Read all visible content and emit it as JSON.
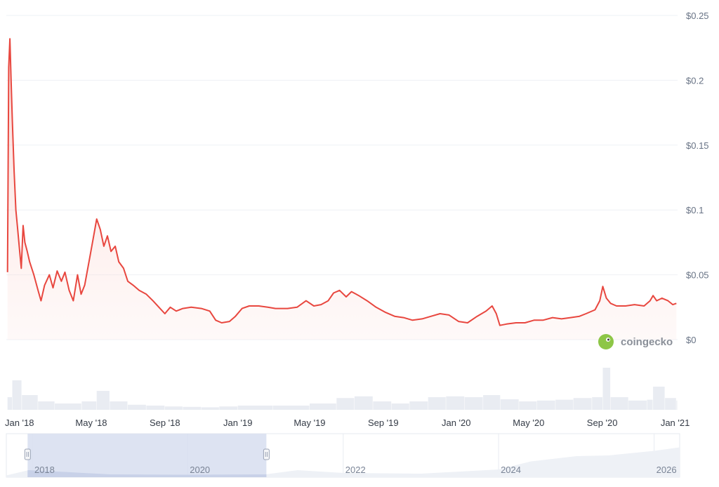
{
  "chart_data": {
    "type": "line",
    "title": "",
    "xlabel": "",
    "ylabel": "",
    "x_range": [
      "2017-12-10",
      "2021-01-05"
    ],
    "ylim": [
      0,
      0.25
    ],
    "y_ticks": [
      {
        "value": 0,
        "label": "$0"
      },
      {
        "value": 0.05,
        "label": "$0.05"
      },
      {
        "value": 0.1,
        "label": "$0.1"
      },
      {
        "value": 0.15,
        "label": "$0.15"
      },
      {
        "value": 0.2,
        "label": "$0.2"
      },
      {
        "value": 0.25,
        "label": "$0.25"
      }
    ],
    "x_ticks": [
      {
        "date": "2018-01-01",
        "label": "Jan '18"
      },
      {
        "date": "2018-05-01",
        "label": "May '18"
      },
      {
        "date": "2018-09-01",
        "label": "Sep '18"
      },
      {
        "date": "2019-01-01",
        "label": "Jan '19"
      },
      {
        "date": "2019-05-01",
        "label": "May '19"
      },
      {
        "date": "2019-09-01",
        "label": "Sep '19"
      },
      {
        "date": "2020-01-01",
        "label": "Jan '20"
      },
      {
        "date": "2020-05-01",
        "label": "May '20"
      },
      {
        "date": "2020-09-01",
        "label": "Sep '20"
      },
      {
        "date": "2021-01-01",
        "label": "Jan '21"
      }
    ],
    "grid": true,
    "line_color": "#e8473f",
    "series": [
      {
        "name": "",
        "points": [
          [
            "2017-12-12",
            0.052
          ],
          [
            "2017-12-14",
            0.21
          ],
          [
            "2017-12-16",
            0.232
          ],
          [
            "2017-12-18",
            0.2
          ],
          [
            "2017-12-20",
            0.17
          ],
          [
            "2017-12-23",
            0.13
          ],
          [
            "2017-12-26",
            0.1
          ],
          [
            "2017-12-29",
            0.085
          ],
          [
            "2018-01-01",
            0.07
          ],
          [
            "2018-01-04",
            0.055
          ],
          [
            "2018-01-07",
            0.088
          ],
          [
            "2018-01-10",
            0.075
          ],
          [
            "2018-01-14",
            0.068
          ],
          [
            "2018-01-18",
            0.06
          ],
          [
            "2018-01-25",
            0.05
          ],
          [
            "2018-02-01",
            0.038
          ],
          [
            "2018-02-06",
            0.03
          ],
          [
            "2018-02-12",
            0.042
          ],
          [
            "2018-02-20",
            0.05
          ],
          [
            "2018-02-26",
            0.04
          ],
          [
            "2018-03-05",
            0.053
          ],
          [
            "2018-03-12",
            0.045
          ],
          [
            "2018-03-18",
            0.052
          ],
          [
            "2018-03-25",
            0.038
          ],
          [
            "2018-04-01",
            0.03
          ],
          [
            "2018-04-08",
            0.05
          ],
          [
            "2018-04-14",
            0.035
          ],
          [
            "2018-04-20",
            0.042
          ],
          [
            "2018-04-28",
            0.062
          ],
          [
            "2018-05-05",
            0.08
          ],
          [
            "2018-05-10",
            0.093
          ],
          [
            "2018-05-16",
            0.085
          ],
          [
            "2018-05-22",
            0.072
          ],
          [
            "2018-05-28",
            0.08
          ],
          [
            "2018-06-03",
            0.068
          ],
          [
            "2018-06-10",
            0.072
          ],
          [
            "2018-06-16",
            0.06
          ],
          [
            "2018-06-24",
            0.055
          ],
          [
            "2018-07-01",
            0.045
          ],
          [
            "2018-07-10",
            0.042
          ],
          [
            "2018-07-20",
            0.038
          ],
          [
            "2018-08-01",
            0.035
          ],
          [
            "2018-08-12",
            0.03
          ],
          [
            "2018-08-22",
            0.025
          ],
          [
            "2018-09-01",
            0.02
          ],
          [
            "2018-09-10",
            0.025
          ],
          [
            "2018-09-20",
            0.022
          ],
          [
            "2018-10-01",
            0.024
          ],
          [
            "2018-10-15",
            0.025
          ],
          [
            "2018-11-01",
            0.024
          ],
          [
            "2018-11-15",
            0.022
          ],
          [
            "2018-11-25",
            0.015
          ],
          [
            "2018-12-05",
            0.013
          ],
          [
            "2018-12-18",
            0.014
          ],
          [
            "2018-12-28",
            0.018
          ],
          [
            "2019-01-08",
            0.024
          ],
          [
            "2019-01-20",
            0.026
          ],
          [
            "2019-02-05",
            0.026
          ],
          [
            "2019-02-20",
            0.025
          ],
          [
            "2019-03-05",
            0.024
          ],
          [
            "2019-03-25",
            0.024
          ],
          [
            "2019-04-10",
            0.025
          ],
          [
            "2019-04-25",
            0.03
          ],
          [
            "2019-05-08",
            0.026
          ],
          [
            "2019-05-20",
            0.027
          ],
          [
            "2019-06-01",
            0.03
          ],
          [
            "2019-06-10",
            0.036
          ],
          [
            "2019-06-20",
            0.038
          ],
          [
            "2019-07-01",
            0.033
          ],
          [
            "2019-07-10",
            0.037
          ],
          [
            "2019-07-22",
            0.034
          ],
          [
            "2019-08-05",
            0.03
          ],
          [
            "2019-08-20",
            0.025
          ],
          [
            "2019-09-05",
            0.021
          ],
          [
            "2019-09-20",
            0.018
          ],
          [
            "2019-10-05",
            0.017
          ],
          [
            "2019-10-20",
            0.015
          ],
          [
            "2019-11-05",
            0.016
          ],
          [
            "2019-11-20",
            0.018
          ],
          [
            "2019-12-05",
            0.02
          ],
          [
            "2019-12-20",
            0.019
          ],
          [
            "2020-01-05",
            0.014
          ],
          [
            "2020-01-20",
            0.013
          ],
          [
            "2020-02-05",
            0.018
          ],
          [
            "2020-02-20",
            0.022
          ],
          [
            "2020-03-01",
            0.026
          ],
          [
            "2020-03-08",
            0.02
          ],
          [
            "2020-03-14",
            0.011
          ],
          [
            "2020-03-25",
            0.012
          ],
          [
            "2020-04-10",
            0.013
          ],
          [
            "2020-04-25",
            0.013
          ],
          [
            "2020-05-10",
            0.015
          ],
          [
            "2020-05-25",
            0.015
          ],
          [
            "2020-06-10",
            0.017
          ],
          [
            "2020-06-25",
            0.016
          ],
          [
            "2020-07-10",
            0.017
          ],
          [
            "2020-07-25",
            0.018
          ],
          [
            "2020-08-05",
            0.02
          ],
          [
            "2020-08-20",
            0.023
          ],
          [
            "2020-08-28",
            0.03
          ],
          [
            "2020-09-02",
            0.041
          ],
          [
            "2020-09-08",
            0.032
          ],
          [
            "2020-09-15",
            0.028
          ],
          [
            "2020-09-25",
            0.026
          ],
          [
            "2020-10-10",
            0.026
          ],
          [
            "2020-10-25",
            0.027
          ],
          [
            "2020-11-10",
            0.026
          ],
          [
            "2020-11-20",
            0.03
          ],
          [
            "2020-11-25",
            0.034
          ],
          [
            "2020-12-01",
            0.03
          ],
          [
            "2020-12-10",
            0.032
          ],
          [
            "2020-12-20",
            0.03
          ],
          [
            "2020-12-28",
            0.027
          ],
          [
            "2021-01-03",
            0.028
          ]
        ]
      }
    ],
    "volume": {
      "points": [
        [
          "2017-12-12",
          0.3
        ],
        [
          "2017-12-20",
          0.7
        ],
        [
          "2018-01-05",
          0.35
        ],
        [
          "2018-02-01",
          0.2
        ],
        [
          "2018-03-01",
          0.15
        ],
        [
          "2018-04-15",
          0.2
        ],
        [
          "2018-05-10",
          0.45
        ],
        [
          "2018-06-01",
          0.2
        ],
        [
          "2018-07-01",
          0.12
        ],
        [
          "2018-08-01",
          0.1
        ],
        [
          "2018-09-01",
          0.08
        ],
        [
          "2018-10-01",
          0.07
        ],
        [
          "2018-11-01",
          0.06
        ],
        [
          "2018-12-01",
          0.08
        ],
        [
          "2019-01-01",
          0.1
        ],
        [
          "2019-03-01",
          0.1
        ],
        [
          "2019-05-01",
          0.15
        ],
        [
          "2019-06-15",
          0.28
        ],
        [
          "2019-07-15",
          0.32
        ],
        [
          "2019-08-15",
          0.2
        ],
        [
          "2019-09-15",
          0.15
        ],
        [
          "2019-10-15",
          0.2
        ],
        [
          "2019-11-15",
          0.3
        ],
        [
          "2019-12-15",
          0.32
        ],
        [
          "2020-01-15",
          0.3
        ],
        [
          "2020-02-15",
          0.35
        ],
        [
          "2020-03-15",
          0.25
        ],
        [
          "2020-04-15",
          0.2
        ],
        [
          "2020-05-15",
          0.22
        ],
        [
          "2020-06-15",
          0.24
        ],
        [
          "2020-07-15",
          0.28
        ],
        [
          "2020-08-15",
          0.3
        ],
        [
          "2020-09-02",
          1.0
        ],
        [
          "2020-09-15",
          0.3
        ],
        [
          "2020-10-15",
          0.22
        ],
        [
          "2020-11-15",
          0.24
        ],
        [
          "2020-11-25",
          0.55
        ],
        [
          "2020-12-15",
          0.28
        ],
        [
          "2021-01-03",
          0.22
        ]
      ]
    }
  },
  "navigator": {
    "x_range": [
      "2017-09-01",
      "2026-05-01"
    ],
    "labels": [
      {
        "date": "2018-01-01",
        "label": "2018"
      },
      {
        "date": "2020-01-01",
        "label": "2020"
      },
      {
        "date": "2022-01-01",
        "label": "2022"
      },
      {
        "date": "2024-01-01",
        "label": "2024"
      },
      {
        "date": "2026-01-01",
        "label": "2026"
      }
    ],
    "selection": [
      "2017-12-10",
      "2021-01-05"
    ],
    "profile": [
      [
        "2017-09-01",
        0.05
      ],
      [
        "2017-12-15",
        0.2
      ],
      [
        "2018-06-01",
        0.15
      ],
      [
        "2019-01-01",
        0.08
      ],
      [
        "2020-01-01",
        0.07
      ],
      [
        "2021-01-01",
        0.08
      ],
      [
        "2021-06-01",
        0.2
      ],
      [
        "2022-01-01",
        0.12
      ],
      [
        "2023-01-01",
        0.1
      ],
      [
        "2024-01-01",
        0.22
      ],
      [
        "2024-06-01",
        0.45
      ],
      [
        "2025-01-01",
        0.6
      ],
      [
        "2025-06-01",
        0.62
      ],
      [
        "2026-01-01",
        0.75
      ],
      [
        "2026-05-01",
        0.85
      ]
    ]
  },
  "watermark": {
    "brand_name": "coingecko",
    "logo_icon": "gecko-icon",
    "logo_color": "#8dc647"
  }
}
